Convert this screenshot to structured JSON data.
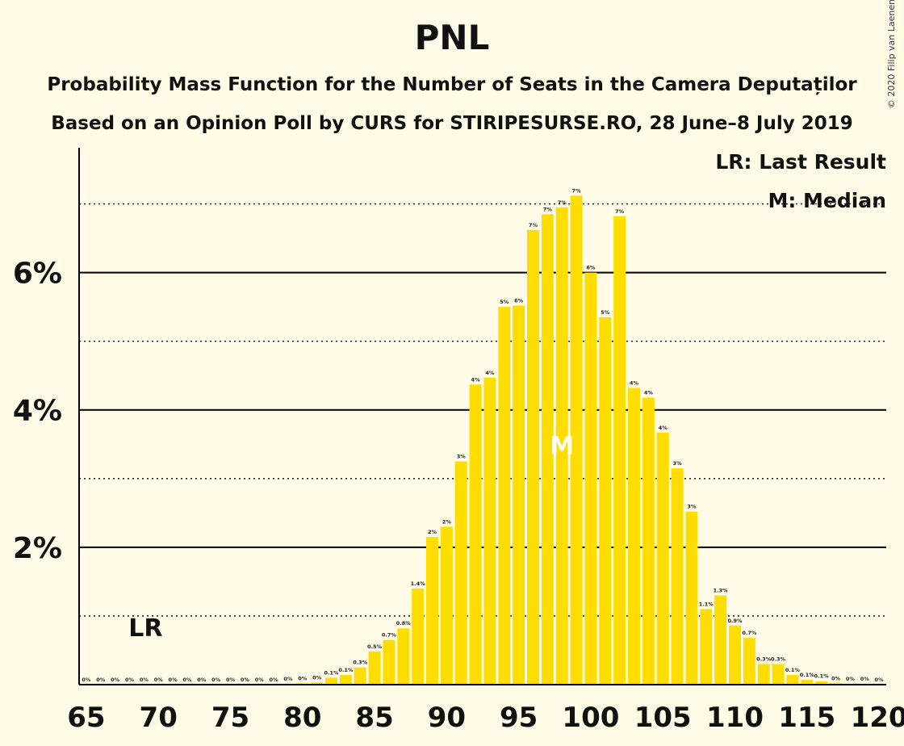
{
  "chart_data": {
    "type": "bar",
    "title": "PNL",
    "subtitle": "Probability Mass Function for the Number of Seats in the Camera Deputaților",
    "subtitle2": "Based on an Opinion Poll by CURS for STIRIPESURSE.RO, 28 June–8 July 2019",
    "copyright": "© 2020 Filip van Laenen",
    "legend": {
      "lr": "LR: Last Result",
      "m": "M: Median",
      "placement": "top-right"
    },
    "last_result": {
      "seats": 69,
      "marker": "LR"
    },
    "median": {
      "seats": 98,
      "marker": "M"
    },
    "x": [
      65,
      66,
      67,
      68,
      69,
      70,
      71,
      72,
      73,
      74,
      75,
      76,
      77,
      78,
      79,
      80,
      81,
      82,
      83,
      84,
      85,
      86,
      87,
      88,
      89,
      90,
      91,
      92,
      93,
      94,
      95,
      96,
      97,
      98,
      99,
      100,
      101,
      102,
      103,
      104,
      105,
      106,
      107,
      108,
      109,
      110,
      111,
      112,
      113,
      114,
      115,
      116,
      117,
      118,
      119,
      120
    ],
    "values": [
      0,
      0,
      0,
      0,
      0,
      0,
      0,
      0,
      0,
      0,
      0,
      0,
      0,
      0,
      0.01,
      0.02,
      0.03,
      0.1,
      0.14,
      0.25,
      0.48,
      0.65,
      0.82,
      1.4,
      2.15,
      2.3,
      3.25,
      4.37,
      4.47,
      5.5,
      5.52,
      6.62,
      6.85,
      6.95,
      7.12,
      6.0,
      5.35,
      6.82,
      4.32,
      4.18,
      3.67,
      3.15,
      2.52,
      1.1,
      1.3,
      0.86,
      0.68,
      0.3,
      0.3,
      0.14,
      0.07,
      0.05,
      0.02,
      0.01,
      0.01,
      0
    ],
    "labels": [
      "0%",
      "0%",
      "0%",
      "0%",
      "0%",
      "0%",
      "0%",
      "0%",
      "0%",
      "0%",
      "0%",
      "0%",
      "0%",
      "0%",
      "0%",
      "0%",
      "0%",
      "0.1%",
      "0.1%",
      "0.3%",
      "0.5%",
      "0.7%",
      "0.8%",
      "1.4%",
      "2%",
      "2%",
      "3%",
      "4%",
      "4%",
      "5%",
      "6%",
      "7%",
      "7%",
      "7%",
      "7%",
      "6%",
      "5%",
      "7%",
      "4%",
      "4%",
      "4%",
      "3%",
      "3%",
      "1.1%",
      "1.3%",
      "0.9%",
      "0.7%",
      "0.3%",
      "0.3%",
      "0.1%",
      "0.1%",
      "0.1%",
      "0%",
      "0%",
      "0%",
      "0%"
    ],
    "x_ticks": [
      65,
      70,
      75,
      80,
      85,
      90,
      95,
      100,
      105,
      110,
      115,
      120
    ],
    "y_ticks": [
      {
        "value": 2,
        "label": "2%"
      },
      {
        "value": 4,
        "label": "4%"
      },
      {
        "value": 6,
        "label": "6%"
      }
    ],
    "y_minor_gridlines": [
      1,
      3,
      5,
      7
    ],
    "ylim": [
      0,
      7.9
    ],
    "xlim": [
      64.5,
      120.5
    ],
    "grid": true,
    "colors": {
      "bar": "#FFDD00",
      "background": "#FFFBE6",
      "axis": "#000000",
      "median_marker": "#FFFFFF"
    }
  }
}
